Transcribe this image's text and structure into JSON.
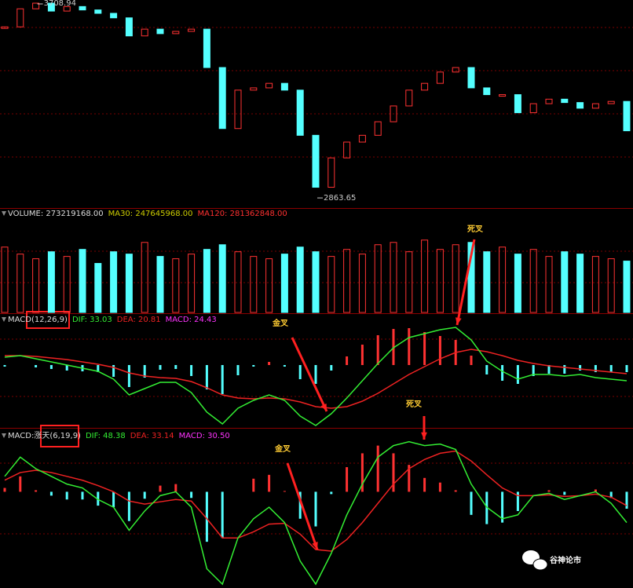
{
  "chart_data": [
    {
      "type": "candle",
      "values": [
        3600,
        3680,
        3705,
        3670,
        3690,
        3675,
        3660,
        3640,
        3560,
        3590,
        3570,
        3580,
        3590,
        3420,
        3150,
        3320,
        3330,
        3350,
        3320,
        3120,
        2890,
        3020,
        3090,
        3120,
        3180,
        3250,
        3320,
        3350,
        3400,
        3420,
        3330,
        3300,
        3300,
        3220,
        3260,
        3280,
        3265,
        3240,
        3260,
        3270,
        3140
      ],
      "ylim": [
        2798,
        3719
      ],
      "high_label": 3708.94,
      "low_label": 2863.65,
      "up_color": "#ff3232",
      "down_color": "#54ffff"
    },
    {
      "type": "volume",
      "header": [
        "VOLUME: 273219168.00",
        "MA30: 247645968.00",
        "MA120: 281362848.00"
      ],
      "values": [
        280000000,
        250000000,
        230000000,
        260000000,
        240000000,
        270000000,
        210000000,
        260000000,
        250000000,
        300000000,
        240000000,
        230000000,
        250000000,
        270000000,
        290000000,
        260000000,
        240000000,
        230000000,
        250000000,
        280000000,
        260000000,
        240000000,
        270000000,
        250000000,
        290000000,
        300000000,
        260000000,
        310000000,
        270000000,
        290000000,
        300000000,
        260000000,
        280000000,
        250000000,
        270000000,
        240000000,
        260000000,
        250000000,
        240000000,
        230000000,
        220000000
      ],
      "ylim": [
        0,
        390000000
      ]
    },
    {
      "type": "macd",
      "header": [
        "MACD(12,26,9)",
        "DIF: 33.03",
        "DEA: 20.81",
        "MACD: 24.43"
      ],
      "dif": [
        10,
        12,
        8,
        4,
        0,
        -4,
        -8,
        -18,
        -38,
        -30,
        -22,
        -22,
        -35,
        -60,
        -75,
        -55,
        -45,
        -38,
        -45,
        -65,
        -77,
        -62,
        -42,
        -20,
        2,
        22,
        35,
        40,
        45,
        48,
        32,
        5,
        -8,
        -18,
        -12,
        -12,
        -14,
        -12,
        -16,
        -18,
        -20
      ],
      "dea": [
        12,
        12,
        11,
        9,
        7,
        4,
        1,
        -3,
        -10,
        -14,
        -16,
        -17,
        -21,
        -29,
        -38,
        -42,
        -43,
        -42,
        -43,
        -47,
        -53,
        -55,
        -53,
        -46,
        -36,
        -24,
        -12,
        -2,
        8,
        16,
        20,
        17,
        12,
        6,
        2,
        -1,
        -3,
        -5,
        -7,
        -9,
        -11
      ],
      "hist": [
        -2,
        0,
        -3,
        -5,
        -7,
        -8,
        -9,
        -15,
        -28,
        -16,
        -6,
        -5,
        -14,
        -31,
        -37,
        -13,
        -2,
        4,
        -2,
        -18,
        -24,
        -7,
        11,
        26,
        38,
        46,
        47,
        42,
        37,
        32,
        12,
        -12,
        -20,
        -24,
        -14,
        -11,
        -11,
        -7,
        -9,
        -9,
        -9
      ],
      "ylim": [
        -80,
        65
      ],
      "annotations": [
        "金叉",
        "死叉"
      ],
      "dif_color": "#33ee33",
      "dea_color": "#ee2222"
    },
    {
      "type": "macd",
      "header": [
        "MACD:涨天(6,19,9)",
        "DIF: 48.38",
        "DEA: 33.14",
        "MACD: 30.50"
      ],
      "dif": [
        20,
        45,
        30,
        20,
        10,
        5,
        -10,
        -20,
        -50,
        -25,
        -5,
        0,
        -20,
        -100,
        -120,
        -60,
        -35,
        -20,
        -40,
        -90,
        -120,
        -80,
        -30,
        10,
        45,
        60,
        65,
        60,
        62,
        55,
        10,
        -20,
        -35,
        -30,
        -5,
        -2,
        -10,
        -5,
        0,
        -15,
        -40
      ],
      "dea": [
        15,
        25,
        28,
        25,
        20,
        15,
        8,
        0,
        -12,
        -16,
        -13,
        -10,
        -12,
        -35,
        -60,
        -60,
        -52,
        -42,
        -41,
        -55,
        -75,
        -77,
        -62,
        -40,
        -15,
        10,
        30,
        42,
        50,
        53,
        40,
        22,
        5,
        -5,
        -5,
        -4,
        -6,
        -5,
        -3,
        -7,
        -18
      ],
      "hist": [
        5,
        20,
        2,
        -5,
        -10,
        -10,
        -18,
        -20,
        -38,
        -9,
        8,
        10,
        -8,
        -65,
        -60,
        0,
        17,
        22,
        1,
        -35,
        -45,
        -3,
        32,
        50,
        60,
        50,
        35,
        18,
        12,
        2,
        -30,
        -42,
        -40,
        -25,
        0,
        2,
        -4,
        0,
        3,
        -8,
        -22
      ],
      "ylim": [
        -125,
        80
      ],
      "annotations": [
        "死叉",
        "金叉"
      ],
      "dif_color": "#33ee33",
      "dea_color": "#ee2222"
    },
    {
      "type": "watermark",
      "text": "谷神论市"
    }
  ]
}
